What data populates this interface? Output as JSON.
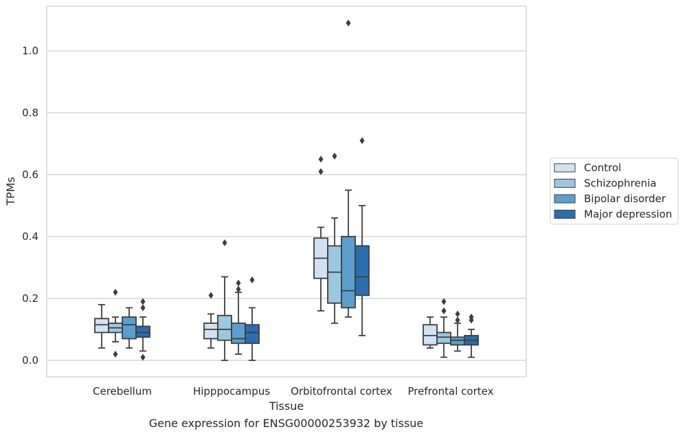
{
  "chart_data": {
    "type": "box",
    "xlabel": "Tissue",
    "ylabel": "TPMs",
    "ylim": [
      -0.05,
      1.15
    ],
    "yticks": [
      0.0,
      0.2,
      0.4,
      0.6,
      0.8,
      1.0
    ],
    "ytick_labels": [
      "0.0",
      "0.2",
      "0.4",
      "0.6",
      "0.8",
      "1.0"
    ],
    "categories": [
      "Cerebellum",
      "Hipppocampus",
      "Orbitofrontal cortex",
      "Prefrontal cortex"
    ],
    "grid": true,
    "legend_position": "right",
    "series": [
      {
        "name": "Control",
        "color": "#d1e2f2",
        "boxes": [
          {
            "whislo": 0.04,
            "q1": 0.09,
            "med": 0.115,
            "q3": 0.135,
            "whishi": 0.18,
            "fliers": []
          },
          {
            "whislo": 0.04,
            "q1": 0.07,
            "med": 0.1,
            "q3": 0.12,
            "whishi": 0.15,
            "fliers": [
              0.21
            ]
          },
          {
            "whislo": 0.16,
            "q1": 0.265,
            "med": 0.33,
            "q3": 0.395,
            "whishi": 0.43,
            "fliers": [
              0.61,
              0.65
            ]
          },
          {
            "whislo": 0.04,
            "q1": 0.05,
            "med": 0.08,
            "q3": 0.115,
            "whishi": 0.14,
            "fliers": []
          }
        ]
      },
      {
        "name": "Schizophrenia",
        "color": "#9ac8e0",
        "boxes": [
          {
            "whislo": 0.06,
            "q1": 0.09,
            "med": 0.105,
            "q3": 0.12,
            "whishi": 0.14,
            "fliers": [
              0.02,
              0.22
            ]
          },
          {
            "whislo": 0.0,
            "q1": 0.065,
            "med": 0.1,
            "q3": 0.145,
            "whishi": 0.27,
            "fliers": [
              0.38
            ]
          },
          {
            "whislo": 0.12,
            "q1": 0.185,
            "med": 0.285,
            "q3": 0.37,
            "whishi": 0.46,
            "fliers": [
              0.66
            ]
          },
          {
            "whislo": 0.01,
            "q1": 0.055,
            "med": 0.075,
            "q3": 0.09,
            "whishi": 0.14,
            "fliers": [
              0.16,
              0.19
            ]
          }
        ]
      },
      {
        "name": "Bipolar disorder",
        "color": "#5a9fcd",
        "boxes": [
          {
            "whislo": 0.04,
            "q1": 0.07,
            "med": 0.115,
            "q3": 0.14,
            "whishi": 0.17,
            "fliers": []
          },
          {
            "whislo": 0.02,
            "q1": 0.055,
            "med": 0.07,
            "q3": 0.12,
            "whishi": 0.22,
            "fliers": [
              0.23,
              0.25
            ]
          },
          {
            "whislo": 0.14,
            "q1": 0.17,
            "med": 0.225,
            "q3": 0.4,
            "whishi": 0.55,
            "fliers": [
              1.09
            ]
          },
          {
            "whislo": 0.03,
            "q1": 0.05,
            "med": 0.065,
            "q3": 0.075,
            "whishi": 0.12,
            "fliers": [
              0.13,
              0.15
            ]
          }
        ]
      },
      {
        "name": "Major depression",
        "color": "#2a6eaf",
        "boxes": [
          {
            "whislo": 0.03,
            "q1": 0.075,
            "med": 0.09,
            "q3": 0.11,
            "whishi": 0.14,
            "fliers": [
              0.01,
              0.17,
              0.19
            ]
          },
          {
            "whislo": 0.0,
            "q1": 0.055,
            "med": 0.09,
            "q3": 0.115,
            "whishi": 0.17,
            "fliers": [
              0.26
            ]
          },
          {
            "whislo": 0.08,
            "q1": 0.21,
            "med": 0.27,
            "q3": 0.37,
            "whishi": 0.5,
            "fliers": [
              0.71
            ]
          },
          {
            "whislo": 0.01,
            "q1": 0.05,
            "med": 0.065,
            "q3": 0.08,
            "whishi": 0.1,
            "fliers": [
              0.13,
              0.14
            ]
          }
        ]
      }
    ]
  },
  "caption": "Gene expression for ENSG00000253932 by tissue"
}
